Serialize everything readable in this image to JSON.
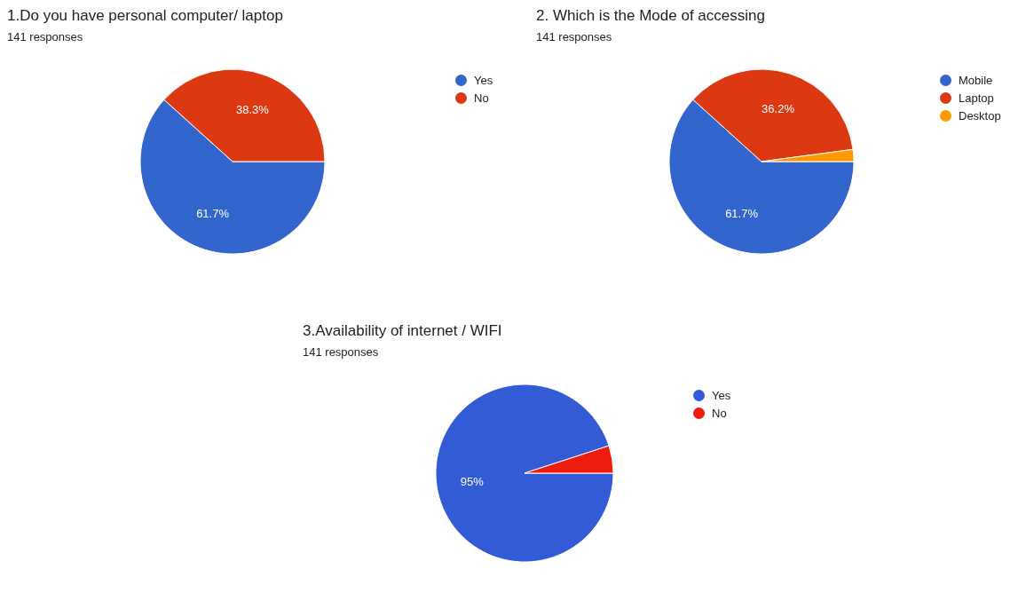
{
  "chart_data": [
    {
      "type": "pie",
      "title": "1.Do you have personal computer/ laptop",
      "subtitle": "141 responses",
      "categories": [
        "Yes",
        "No"
      ],
      "values": [
        61.7,
        38.3
      ],
      "colors": [
        "#3366cc",
        "#dc3912"
      ],
      "value_labels": [
        "61.7%",
        "38.3%"
      ],
      "legend": "right"
    },
    {
      "type": "pie",
      "title": "2. Which is the Mode of accessing",
      "subtitle": "141 responses",
      "categories": [
        "Mobile",
        "Laptop",
        "Desktop"
      ],
      "values": [
        61.7,
        36.2,
        2.1
      ],
      "colors": [
        "#3366cc",
        "#dc3912",
        "#ff9900"
      ],
      "value_labels": [
        "61.7%",
        "36.2%",
        null
      ],
      "legend": "right"
    },
    {
      "type": "pie",
      "title": "3.Availability of internet / WIFI",
      "subtitle": "141 responses",
      "categories": [
        "Yes",
        "No"
      ],
      "values": [
        95,
        5
      ],
      "colors": [
        "#335bd6",
        "#ee1c0c"
      ],
      "value_labels": [
        "95%",
        null
      ],
      "legend": "right"
    }
  ]
}
